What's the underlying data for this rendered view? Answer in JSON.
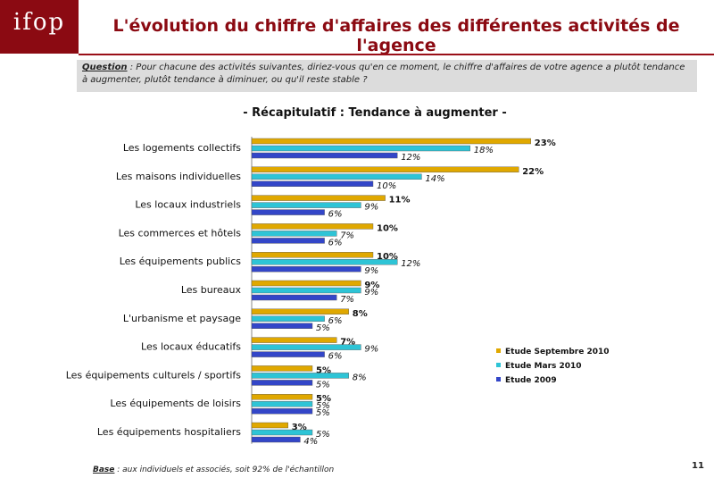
{
  "logo": {
    "text": "ifop"
  },
  "header": {
    "title": "L'évolution du chiffre d'affaires des différentes activités de l'agence"
  },
  "question": {
    "label": "Question",
    "text": ":    Pour chacune des activités suivantes, diriez-vous qu'en ce moment, le chiffre d'affaires de votre agence a plutôt tendance à augmenter, plutôt tendance à diminuer, ou qu'il reste stable ?"
  },
  "footer": {
    "base_label": "Base",
    "base_text": " : aux individuels et associés, soit 92% de l'échantillon",
    "page_number": "11"
  },
  "colors": {
    "series1": "#e0a800",
    "series2": "#2ec4d6",
    "series3": "#3346c8"
  },
  "chart_data": {
    "type": "bar",
    "orientation": "horizontal",
    "title": "- Récapitulatif : Tendance à augmenter -",
    "categories": [
      "Les logements collectifs",
      "Les maisons individuelles",
      "Les locaux industriels",
      "Les commerces et hôtels",
      "Les équipements publics",
      "Les bureaux",
      "L'urbanisme et paysage",
      "Les locaux éducatifs",
      "Les équipements culturels / sportifs",
      "Les équipements de loisirs",
      "Les équipements hospitaliers"
    ],
    "series": [
      {
        "name": "Etude Septembre  2010",
        "values": [
          23,
          22,
          11,
          10,
          10,
          9,
          8,
          7,
          5,
          5,
          3
        ]
      },
      {
        "name": "Etude Mars 2010",
        "values": [
          18,
          14,
          9,
          7,
          12,
          9,
          6,
          9,
          8,
          5,
          5
        ]
      },
      {
        "name": "Etude 2009",
        "values": [
          12,
          10,
          6,
          6,
          9,
          7,
          5,
          6,
          5,
          5,
          4
        ]
      }
    ],
    "value_suffix": "%",
    "legend_position": "right",
    "grid": false
  }
}
